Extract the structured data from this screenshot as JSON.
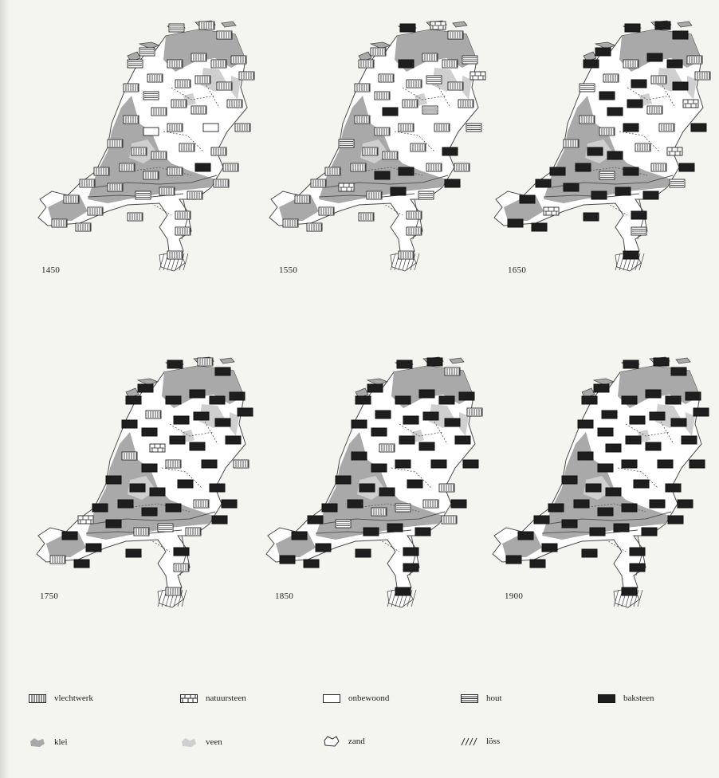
{
  "maps": [
    {
      "year": "1450",
      "id": "map-1450"
    },
    {
      "year": "1550",
      "id": "map-1550"
    },
    {
      "year": "1650",
      "id": "map-1650"
    },
    {
      "year": "1750",
      "id": "map-1750"
    },
    {
      "year": "1850",
      "id": "map-1850"
    },
    {
      "year": "1900",
      "id": "map-1900"
    }
  ],
  "legend": {
    "row1": [
      {
        "label": "vlechtwerk",
        "key": "vlechtwerk"
      },
      {
        "label": "natuursteen",
        "key": "natuursteen"
      },
      {
        "label": "onbewoond",
        "key": "onbewoond"
      },
      {
        "label": "hout",
        "key": "hout"
      },
      {
        "label": "baksteen",
        "key": "baksteen"
      }
    ],
    "row2": [
      {
        "label": "klei",
        "key": "klei"
      },
      {
        "label": "veen",
        "key": "veen"
      },
      {
        "label": "zand",
        "key": "zand"
      },
      {
        "label": "löss",
        "key": "loss"
      }
    ]
  },
  "colors": {
    "klei": "#a9a9a9",
    "veen": "#cfcfcf",
    "zand": "#ffffff",
    "outline": "#4a4a4a",
    "baksteen": "#1e1e1e"
  },
  "symbol_mix": {
    "1450": {
      "vlechtwerk": 0.82,
      "onbewoond": 0.06,
      "hout": 0.06,
      "natuursteen": 0.02,
      "baksteen": 0.04
    },
    "1550": {
      "vlechtwerk": 0.55,
      "onbewoond": 0.05,
      "hout": 0.12,
      "natuursteen": 0.03,
      "baksteen": 0.25
    },
    "1650": {
      "vlechtwerk": 0.2,
      "onbewoond": 0.02,
      "hout": 0.1,
      "natuursteen": 0.02,
      "baksteen": 0.66
    },
    "1750": {
      "vlechtwerk": 0.22,
      "onbewoond": 0.0,
      "hout": 0.08,
      "natuursteen": 0.02,
      "baksteen": 0.68
    },
    "1850": {
      "vlechtwerk": 0.1,
      "onbewoond": 0.0,
      "hout": 0.04,
      "natuursteen": 0.01,
      "baksteen": 0.85
    },
    "1900": {
      "vlechtwerk": 0.03,
      "onbewoond": 0.0,
      "hout": 0.02,
      "natuursteen": 0.0,
      "baksteen": 0.95
    }
  }
}
